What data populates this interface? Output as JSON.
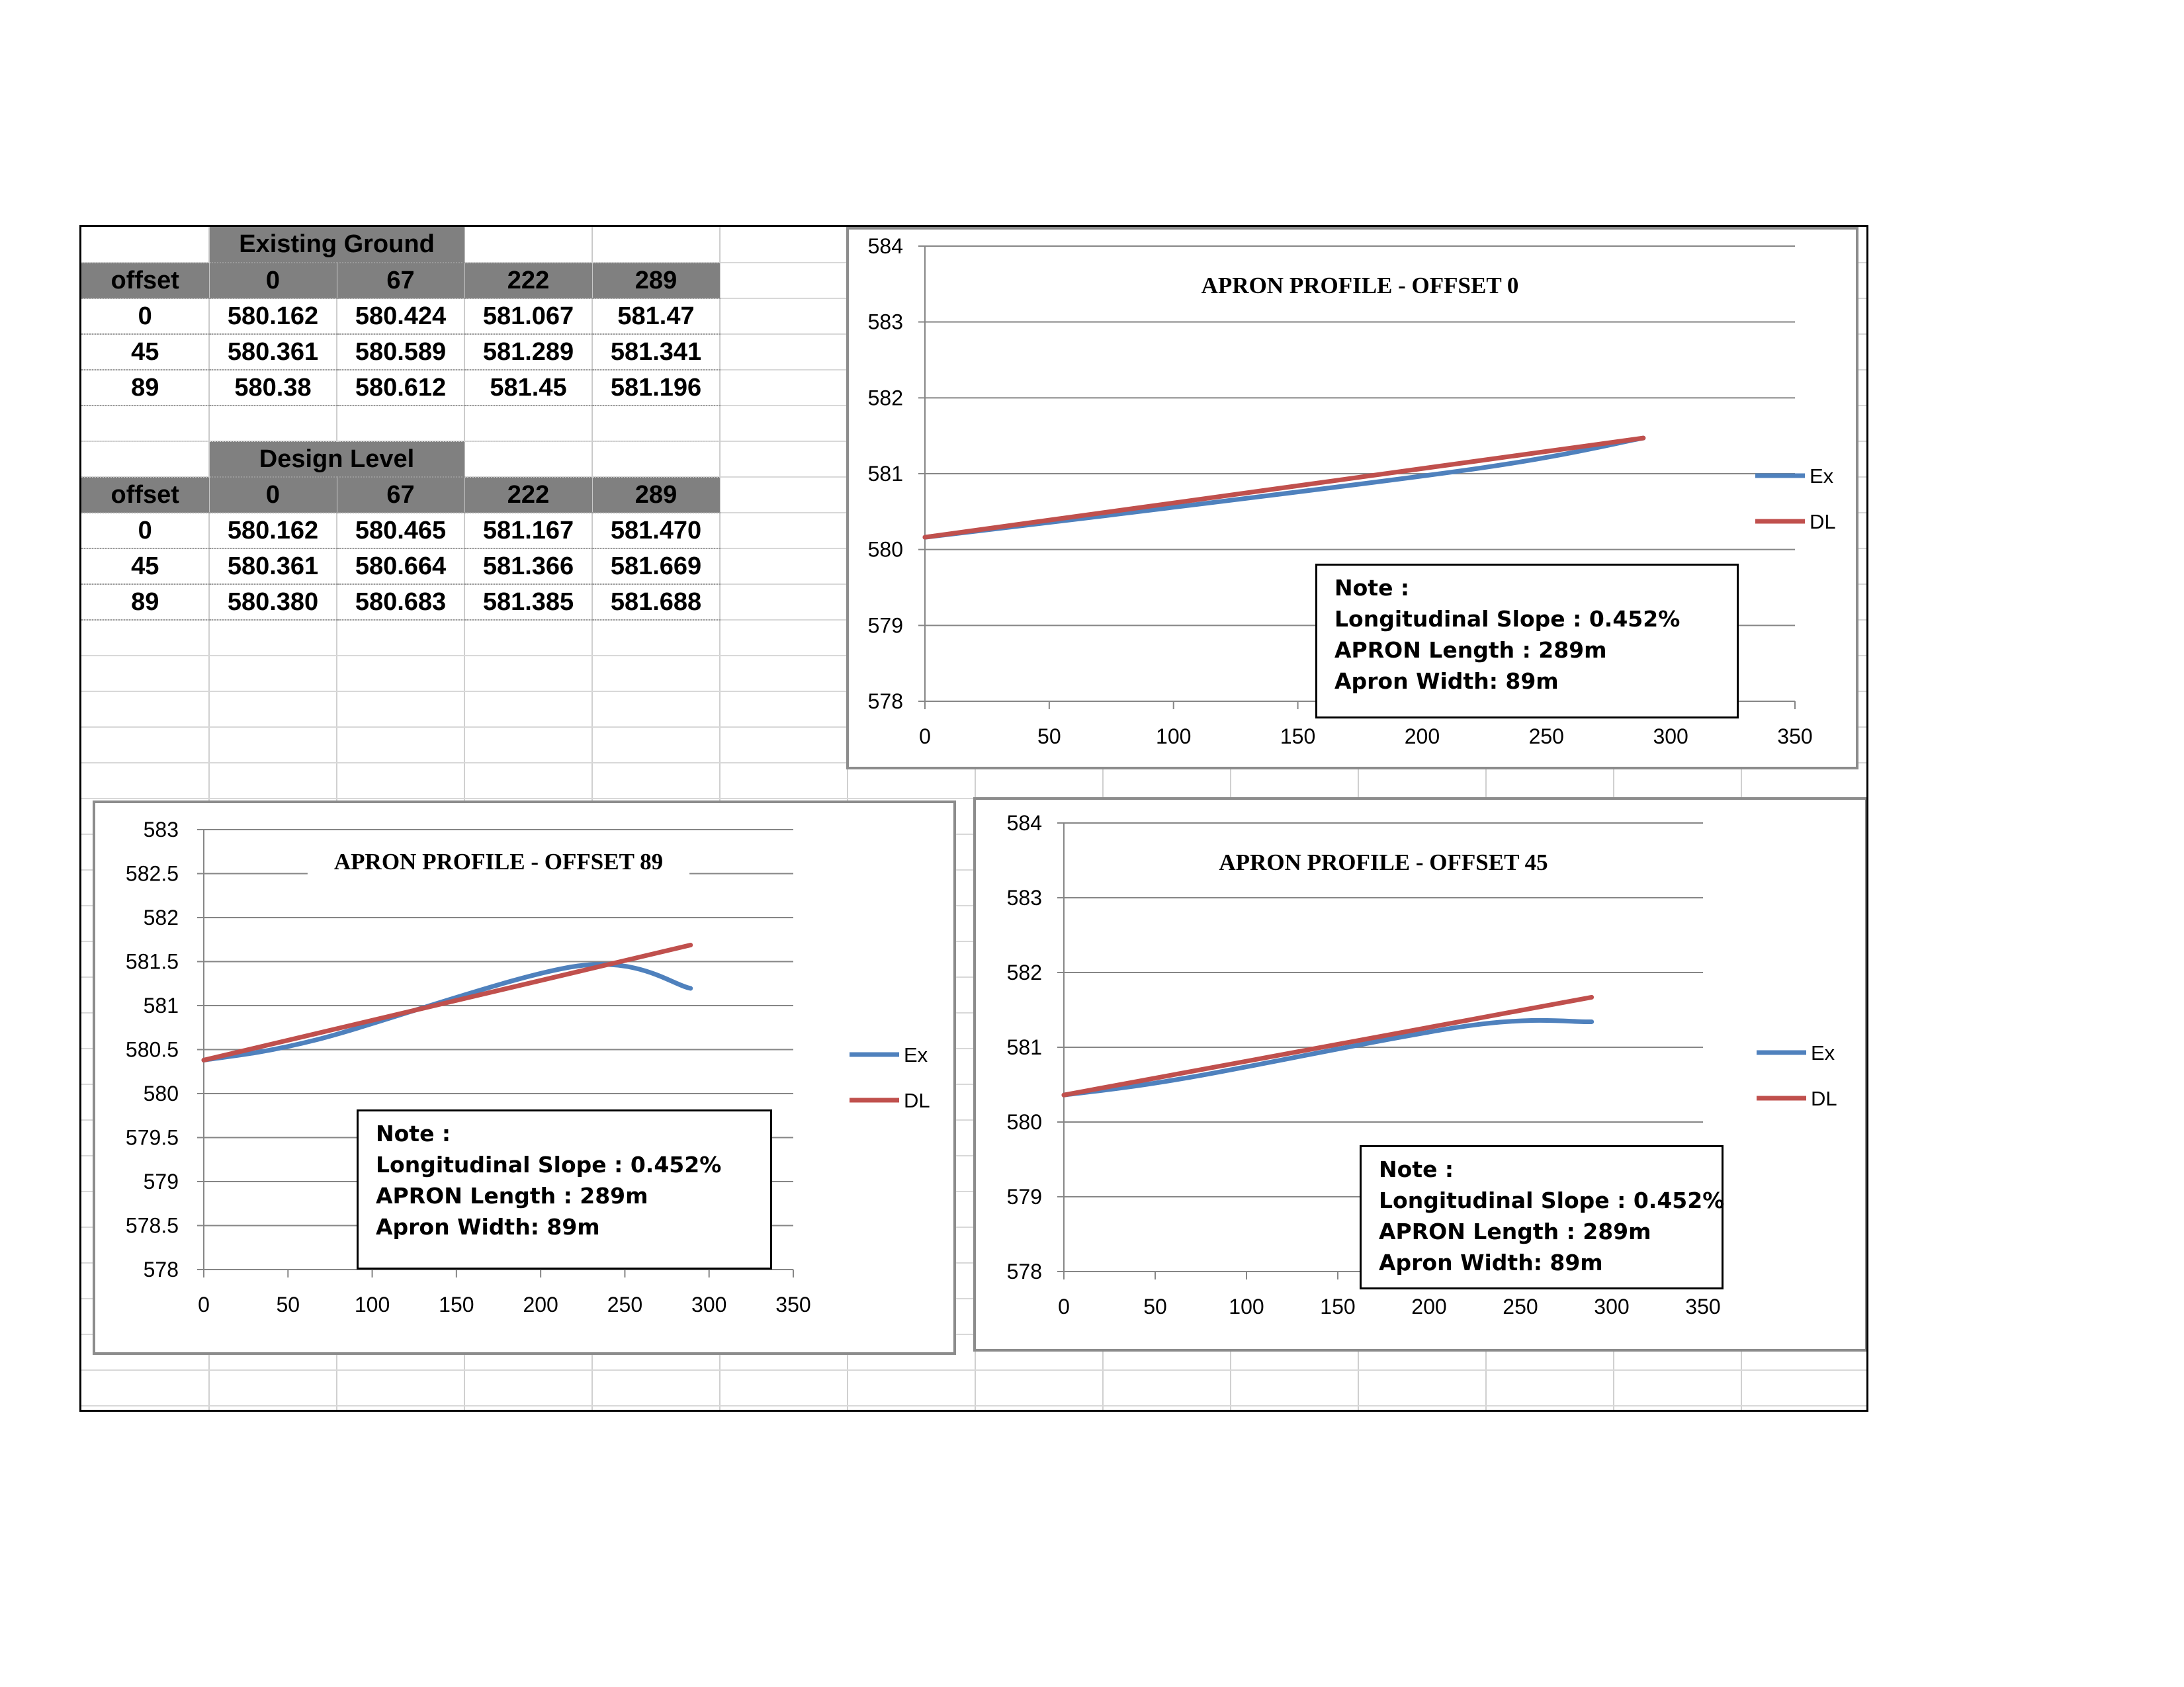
{
  "tables": [
    {
      "title": "Existing Ground",
      "columns": [
        "offset",
        "0",
        "67",
        "222",
        "289"
      ],
      "rows": [
        [
          "0",
          "580.162",
          "580.424",
          "581.067",
          "581.47"
        ],
        [
          "45",
          "580.361",
          "580.589",
          "581.289",
          "581.341"
        ],
        [
          "89",
          "580.38",
          "580.612",
          "581.45",
          "581.196"
        ]
      ]
    },
    {
      "title": "Design Level",
      "columns": [
        "offset",
        "0",
        "67",
        "222",
        "289"
      ],
      "rows": [
        [
          "0",
          "580.162",
          "580.465",
          "581.167",
          "581.470"
        ],
        [
          "45",
          "580.361",
          "580.664",
          "581.366",
          "581.669"
        ],
        [
          "89",
          "580.380",
          "580.683",
          "581.385",
          "581.688"
        ]
      ]
    }
  ],
  "note": {
    "heading": "Note :",
    "lines": [
      "Longitudinal Slope : 0.452%",
      "APRON Length : 289m",
      "Apron Width: 89m"
    ]
  },
  "colors": {
    "ex": "#4f81bd",
    "dl": "#c0504d",
    "header_fill": "#808080",
    "gridline": "#868686"
  },
  "chart_data": [
    {
      "type": "line",
      "title": "APRON PROFILE - OFFSET 0",
      "x": [
        0,
        67,
        222,
        289
      ],
      "series": [
        {
          "name": "Ex",
          "values": [
            580.162,
            580.424,
            581.067,
            581.47
          ]
        },
        {
          "name": "DL",
          "values": [
            580.162,
            580.465,
            581.167,
            581.47
          ]
        }
      ],
      "xlim": [
        0,
        350
      ],
      "ylim": [
        578,
        584
      ],
      "xticks": [
        0,
        50,
        100,
        150,
        200,
        250,
        300,
        350
      ],
      "yticks": [
        578,
        579,
        580,
        581,
        582,
        583,
        584
      ],
      "ytick_labels": [
        "578",
        "579",
        "580",
        "581",
        "582",
        "583",
        "584"
      ],
      "grid": "horizontal",
      "legend": "right"
    },
    {
      "type": "line",
      "title": "APRON PROFILE - OFFSET 89",
      "x": [
        0,
        67,
        222,
        289
      ],
      "series": [
        {
          "name": "Ex",
          "values": [
            580.38,
            580.612,
            581.45,
            581.196
          ]
        },
        {
          "name": "DL",
          "values": [
            580.38,
            580.683,
            581.385,
            581.688
          ]
        }
      ],
      "xlim": [
        0,
        350
      ],
      "ylim": [
        578,
        583
      ],
      "xticks": [
        0,
        50,
        100,
        150,
        200,
        250,
        300,
        350
      ],
      "yticks": [
        578,
        578.5,
        579,
        579.5,
        580,
        580.5,
        581,
        581.5,
        582,
        582.5,
        583
      ],
      "ytick_labels": [
        "578",
        "578.5",
        "579",
        "579.5",
        "580",
        "580.5",
        "581",
        "581.5",
        "582",
        "582.5",
        "583"
      ],
      "grid": "horizontal",
      "legend": "right"
    },
    {
      "type": "line",
      "title": "APRON PROFILE - OFFSET 45",
      "x": [
        0,
        67,
        222,
        289
      ],
      "series": [
        {
          "name": "Ex",
          "values": [
            580.361,
            580.589,
            581.289,
            581.341
          ]
        },
        {
          "name": "DL",
          "values": [
            580.361,
            580.664,
            581.366,
            581.669
          ]
        }
      ],
      "xlim": [
        0,
        350
      ],
      "ylim": [
        578,
        584
      ],
      "xticks": [
        0,
        50,
        100,
        150,
        200,
        250,
        300,
        350
      ],
      "yticks": [
        578,
        579,
        580,
        581,
        582,
        583,
        584
      ],
      "ytick_labels": [
        "578",
        "579",
        "580",
        "581",
        "582",
        "583",
        "584"
      ],
      "grid": "horizontal",
      "legend": "right"
    }
  ]
}
